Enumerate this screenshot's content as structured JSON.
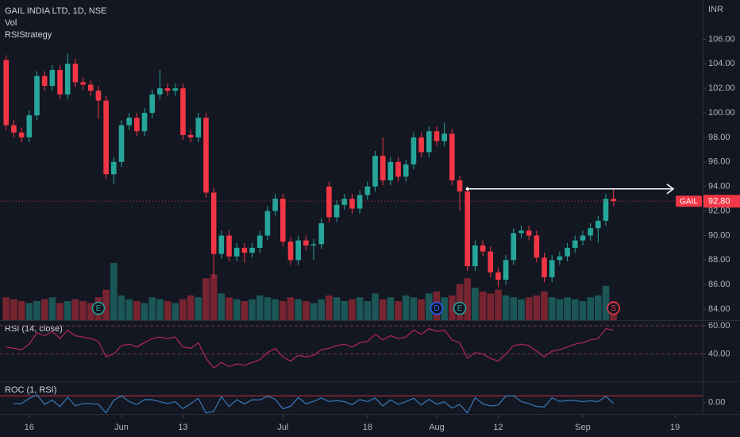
{
  "chart_data": [
    {
      "type": "candlestick",
      "title": "GAIL INDIA LTD, 1D, NSE",
      "volume_label": "Vol",
      "strategy": "RSIStrategy",
      "currency": "INR",
      "up_color": "#26a69a",
      "down_color": "#f23645",
      "xlim": [
        -0.8,
        90.6
      ],
      "xticks": [
        {
          "value": 3,
          "label": "16"
        },
        {
          "value": 15,
          "label": "Jun"
        },
        {
          "value": 23,
          "label": "13"
        },
        {
          "value": 36,
          "label": "Jul"
        },
        {
          "value": 47,
          "label": "18"
        },
        {
          "value": 56,
          "label": "Aug"
        },
        {
          "value": 64,
          "label": "12"
        },
        {
          "value": 75,
          "label": "Sep"
        },
        {
          "value": 87,
          "label": "19"
        }
      ],
      "ylim": [
        83.1,
        109.2
      ],
      "yticks": [
        {
          "value": 84,
          "label": "84.00"
        },
        {
          "value": 86,
          "label": "86.00"
        },
        {
          "value": 88,
          "label": "88.00"
        },
        {
          "value": 90,
          "label": "90.00"
        },
        {
          "value": 92,
          "label": "92.00"
        },
        {
          "value": 94,
          "label": "94.00"
        },
        {
          "value": 96,
          "label": "96.00"
        },
        {
          "value": 98,
          "label": "98.00"
        },
        {
          "value": 100,
          "label": "100.00"
        },
        {
          "value": 102,
          "label": "102.00"
        },
        {
          "value": 104,
          "label": "104.00"
        },
        {
          "value": 106,
          "label": "106.00"
        }
      ],
      "open": [
        104.3,
        99.0,
        98.4,
        98.0,
        99.8,
        103.0,
        102.2,
        103.5,
        101.5,
        104.0,
        102.5,
        102.3,
        101.8,
        101.0,
        95.0,
        96.0,
        99.0,
        99.6,
        98.5,
        100.0,
        101.5,
        102.0,
        101.8,
        102.0,
        98.2,
        98.0,
        99.6,
        93.5,
        88.5,
        90.0,
        88.3,
        89.0,
        88.6,
        89.0,
        90.0,
        92.0,
        93.0,
        89.5,
        88.0,
        89.6,
        89.2,
        89.3,
        94.0,
        91.5,
        92.5,
        93.0,
        92.2,
        93.3,
        94.0,
        96.5,
        94.5,
        96.0,
        94.8,
        95.8,
        98.0,
        96.8,
        98.5,
        97.7,
        98.3,
        94.5,
        93.6,
        87.5,
        89.2,
        88.7,
        87.0,
        86.4,
        88.0,
        90.2,
        90.4,
        90.0,
        88.2,
        86.6,
        88.0,
        88.3,
        89.0,
        89.6,
        90.0,
        90.6,
        91.2,
        93.0
      ],
      "high": [
        104.7,
        99.4,
        98.8,
        100.2,
        103.4,
        103.4,
        103.9,
        103.9,
        104.8,
        104.4,
        102.9,
        102.7,
        102.2,
        101.4,
        96.4,
        99.4,
        100.0,
        100.0,
        100.4,
        101.9,
        103.5,
        102.4,
        102.4,
        102.4,
        98.6,
        100.0,
        100.0,
        93.9,
        90.4,
        90.4,
        89.4,
        89.4,
        89.4,
        90.4,
        92.4,
        93.4,
        93.4,
        89.9,
        90.0,
        90.0,
        89.7,
        91.4,
        94.4,
        92.9,
        93.4,
        93.4,
        93.7,
        94.4,
        96.9,
        98.0,
        96.4,
        96.4,
        96.2,
        98.4,
        98.4,
        98.9,
        98.9,
        99.2,
        98.7,
        94.9,
        94.0,
        89.6,
        89.6,
        89.1,
        87.4,
        88.4,
        90.6,
        90.8,
        90.8,
        90.4,
        88.6,
        88.4,
        88.7,
        89.4,
        90.0,
        90.4,
        91.0,
        91.6,
        93.4,
        93.8
      ],
      "low": [
        98.6,
        98.0,
        97.6,
        97.6,
        99.4,
        101.8,
        101.8,
        101.1,
        101.1,
        102.1,
        101.9,
        101.4,
        99.5,
        94.6,
        94.2,
        95.6,
        98.6,
        98.1,
        98.1,
        99.6,
        101.1,
        101.4,
        101.4,
        97.8,
        97.6,
        97.6,
        93.1,
        86.5,
        88.1,
        87.9,
        87.9,
        87.8,
        88.2,
        88.6,
        89.6,
        91.6,
        89.1,
        87.6,
        87.6,
        88.8,
        88.0,
        88.9,
        91.1,
        91.1,
        92.1,
        91.8,
        91.8,
        92.9,
        93.6,
        94.1,
        94.1,
        94.4,
        94.4,
        95.4,
        96.4,
        96.4,
        97.3,
        97.3,
        94.1,
        92.0,
        87.1,
        87.1,
        88.3,
        86.6,
        85.8,
        86.0,
        87.6,
        89.8,
        89.6,
        87.8,
        86.2,
        86.2,
        87.6,
        87.9,
        88.6,
        89.2,
        89.6,
        89.4,
        90.8,
        92.4
      ],
      "close": [
        99.0,
        98.4,
        98.0,
        99.8,
        103.0,
        102.2,
        103.5,
        101.5,
        104.0,
        102.5,
        102.3,
        101.8,
        101.0,
        95.0,
        96.0,
        99.0,
        99.6,
        98.5,
        100.0,
        101.5,
        102.0,
        101.8,
        102.0,
        98.2,
        98.0,
        99.6,
        93.5,
        88.5,
        90.0,
        88.3,
        89.0,
        88.6,
        89.0,
        90.0,
        92.0,
        93.0,
        89.5,
        88.0,
        89.6,
        89.2,
        89.3,
        91.0,
        91.5,
        92.5,
        93.0,
        92.2,
        93.3,
        94.0,
        96.5,
        94.5,
        96.0,
        94.8,
        95.8,
        98.0,
        96.8,
        98.5,
        97.7,
        98.3,
        94.5,
        93.6,
        87.5,
        89.2,
        88.7,
        87.0,
        86.4,
        88.0,
        90.2,
        90.4,
        90.0,
        88.2,
        86.6,
        88.0,
        88.3,
        89.0,
        89.6,
        90.0,
        90.6,
        91.2,
        93.0,
        92.8
      ],
      "volume": [
        12,
        11,
        10,
        9,
        10,
        11,
        12,
        9,
        10,
        11,
        10,
        9,
        12,
        16,
        30,
        13,
        11,
        10,
        9,
        12,
        11,
        10,
        9,
        11,
        13,
        12,
        22,
        24,
        14,
        12,
        11,
        10,
        11,
        13,
        12,
        11,
        10,
        12,
        11,
        10,
        9,
        11,
        13,
        12,
        10,
        11,
        12,
        10,
        14,
        11,
        12,
        10,
        13,
        12,
        11,
        14,
        15,
        12,
        13,
        19,
        22,
        17,
        15,
        14,
        16,
        13,
        12,
        11,
        12,
        13,
        15,
        12,
        11,
        12,
        11,
        10,
        12,
        13,
        18,
        10
      ],
      "price_tag": {
        "name": "GAIL",
        "label": "92.80"
      },
      "horizontal_ray": {
        "value": 93.8,
        "from": 60
      },
      "events": [
        {
          "label": "E",
          "index": 12
        },
        {
          "label": "D",
          "index": 56
        },
        {
          "label": "E",
          "index": 59
        },
        {
          "label": "S",
          "index": 79
        }
      ]
    },
    {
      "type": "line",
      "title": "RSI (14, close)",
      "color": "#b22853",
      "ylim": [
        20.6,
        63.4
      ],
      "yticks": [
        {
          "value": 60,
          "label": "60.00"
        },
        {
          "value": 40,
          "label": "40.00"
        }
      ],
      "values": [
        45,
        44,
        43,
        47,
        55,
        53,
        56,
        51,
        57,
        53,
        52,
        51,
        49,
        38,
        40,
        46,
        47,
        45,
        48,
        51,
        52,
        51,
        52,
        45,
        44,
        48,
        37,
        30,
        34,
        31,
        33,
        32,
        34,
        36,
        41,
        44,
        38,
        35,
        39,
        38,
        39,
        43,
        44,
        46,
        47,
        45,
        48,
        49,
        54,
        50,
        53,
        51,
        52,
        57,
        54,
        58,
        56,
        57,
        50,
        48,
        37,
        41,
        40,
        37,
        35,
        40,
        46,
        47,
        46,
        42,
        38,
        42,
        43,
        45,
        47,
        48,
        50,
        51,
        58,
        57
      ]
    },
    {
      "type": "line",
      "title": "ROC (1, RSI)",
      "color": "#3a78b8",
      "ylim": [
        -25,
        45
      ],
      "yticks": [
        {
          "value": 0,
          "label": "0.00"
        }
      ],
      "levels": [
        15
      ],
      "values": [
        null,
        -2.2,
        -2.3,
        9.3,
        17.0,
        -3.6,
        5.7,
        -8.9,
        11.8,
        -7.0,
        -1.9,
        -1.9,
        -3.9,
        -22.4,
        5.3,
        15.0,
        2.2,
        -4.3,
        6.7,
        6.3,
        2.0,
        -1.9,
        2.0,
        -13.5,
        -2.2,
        9.1,
        -22.9,
        -18.9,
        13.3,
        -8.8,
        6.5,
        -3.0,
        6.3,
        5.9,
        13.9,
        7.3,
        -13.6,
        -7.9,
        11.4,
        -2.6,
        2.6,
        10.3,
        2.3,
        4.5,
        2.2,
        -4.3,
        6.7,
        2.1,
        10.2,
        -7.4,
        6.0,
        -3.8,
        2.0,
        9.6,
        -5.3,
        7.4,
        -3.4,
        1.8,
        -12.3,
        -4.0,
        -22.9,
        10.8,
        -2.4,
        -7.5,
        -5.4,
        14.3,
        15.0,
        2.2,
        -2.1,
        -8.7,
        -9.5,
        10.5,
        2.4,
        4.7,
        4.4,
        2.1,
        4.2,
        2.0,
        13.7,
        -1.7
      ]
    }
  ]
}
